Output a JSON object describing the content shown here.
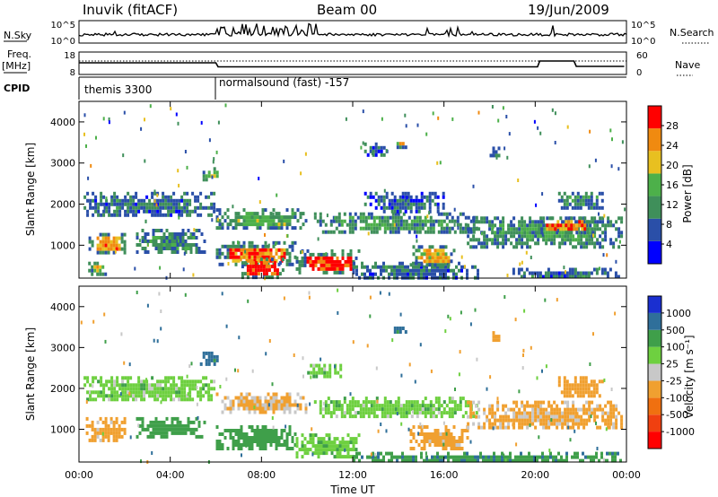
{
  "header": {
    "station": "Inuvik (fitACF)",
    "beam": "Beam 00",
    "date": "19/Jun/2009"
  },
  "top_panels": {
    "nsky_label": "N.Sky",
    "nsky_ticks": [
      "10^5",
      "10^0"
    ],
    "nsearch_ticks": [
      "10^5",
      "10^0"
    ],
    "nsearch_label": "N.Search",
    "freq_label_1": "Freq.",
    "freq_label_2": "[MHz]",
    "freq_ticks": [
      "18",
      "8"
    ],
    "nave_ticks": [
      "60",
      "0"
    ],
    "nave_label": "Nave",
    "cpid_label": "CPID",
    "cpid_1": "themis 3300",
    "cpid_2": "normalsound (fast) -157"
  },
  "colors": {
    "power_scale": [
      "#0000ff",
      "#2a4fa8",
      "#3f8f5a",
      "#4db04a",
      "#e8c020",
      "#f08a10",
      "#ff0000"
    ],
    "velocity_scale": [
      "#1a2fd0",
      "#2f6f9a",
      "#3f9f4a",
      "#6ed040",
      "#c8c8c8",
      "#f0a030",
      "#f07010",
      "#f04010",
      "#ff0000"
    ]
  },
  "chart_data": [
    {
      "type": "heatmap",
      "name": "power",
      "ylabel": "Slant Range [km]",
      "yticks": [
        "1000",
        "2000",
        "3000",
        "4000"
      ],
      "ylim": [
        200,
        4500
      ],
      "xlim": [
        0,
        24
      ],
      "colorbar_label": "Power [dB]",
      "colorbar_ticks": [
        "4",
        "8",
        "12",
        "16",
        "20",
        "24",
        "28"
      ],
      "zlim": [
        0,
        32
      ],
      "regions": [
        {
          "t0": 0.2,
          "t1": 5.9,
          "r0": 1700,
          "r1": 2300,
          "v": 9
        },
        {
          "t0": 0.3,
          "t1": 2.0,
          "r0": 850,
          "r1": 1300,
          "v": 24
        },
        {
          "t0": 2.5,
          "t1": 5.5,
          "r0": 800,
          "r1": 1400,
          "v": 11
        },
        {
          "t0": 0.4,
          "t1": 1.2,
          "r0": 300,
          "r1": 600,
          "v": 20
        },
        {
          "t0": 6.0,
          "t1": 10.0,
          "r0": 1400,
          "r1": 1900,
          "v": 14
        },
        {
          "t0": 6.0,
          "t1": 9.5,
          "r0": 500,
          "r1": 1100,
          "v": 26
        },
        {
          "t0": 7.0,
          "t1": 9.0,
          "r0": 250,
          "r1": 700,
          "v": 29
        },
        {
          "t0": 9.5,
          "t1": 12.3,
          "r0": 300,
          "r1": 900,
          "v": 30
        },
        {
          "t0": 10.3,
          "t1": 17.5,
          "r0": 1300,
          "r1": 1800,
          "v": 12
        },
        {
          "t0": 12.5,
          "t1": 16.0,
          "r0": 1800,
          "r1": 2300,
          "v": 7
        },
        {
          "t0": 12.0,
          "t1": 17.5,
          "r0": 200,
          "r1": 600,
          "v": 9
        },
        {
          "t0": 14.5,
          "t1": 16.5,
          "r0": 500,
          "r1": 1000,
          "v": 22
        },
        {
          "t0": 17.0,
          "t1": 23.8,
          "r0": 1000,
          "r1": 1700,
          "v": 13
        },
        {
          "t0": 20.0,
          "t1": 22.5,
          "r0": 1300,
          "r1": 1700,
          "v": 25
        },
        {
          "t0": 21.0,
          "t1": 23.0,
          "r0": 1900,
          "r1": 2300,
          "v": 11
        },
        {
          "t0": 19.0,
          "t1": 23.8,
          "r0": 200,
          "r1": 450,
          "v": 9
        },
        {
          "t0": 13.8,
          "t1": 14.3,
          "r0": 3400,
          "r1": 3600,
          "v": 22
        },
        {
          "t0": 5.3,
          "t1": 6.2,
          "r0": 2600,
          "r1": 2900,
          "v": 18
        },
        {
          "t0": 18.0,
          "t1": 18.4,
          "r0": 3200,
          "r1": 3400,
          "v": 8
        },
        {
          "t0": 12.5,
          "t1": 13.5,
          "r0": 3200,
          "r1": 3500,
          "v": 8
        }
      ]
    },
    {
      "type": "heatmap",
      "name": "velocity",
      "ylabel": "Slant Range [km]",
      "yticks": [
        "1000",
        "2000",
        "3000",
        "4000"
      ],
      "ylim": [
        200,
        4500
      ],
      "xlim": [
        0,
        24
      ],
      "xlabel": "Time UT",
      "xticks": [
        "00:00",
        "04:00",
        "08:00",
        "12:00",
        "16:00",
        "20:00",
        "00:00"
      ],
      "colorbar_label": "Velocity [m s⁻¹]",
      "colorbar_ticks": [
        "1000",
        "500",
        "100",
        "25",
        "-25",
        "-100",
        "-500",
        "-1000"
      ],
      "regions": [
        {
          "t0": 0.2,
          "t1": 5.9,
          "r0": 1700,
          "r1": 2300,
          "v": 0
        },
        {
          "t0": 0.3,
          "t1": 2.0,
          "r0": 700,
          "r1": 1300,
          "v": -150
        },
        {
          "t0": 2.5,
          "t1": 5.5,
          "r0": 800,
          "r1": 1300,
          "v": 60
        },
        {
          "t0": 6.0,
          "t1": 10.0,
          "r0": 1400,
          "r1": 1900,
          "v": -120
        },
        {
          "t0": 6.0,
          "t1": 9.5,
          "r0": 500,
          "r1": 1100,
          "v": 60
        },
        {
          "t0": 9.5,
          "t1": 12.3,
          "r0": 300,
          "r1": 900,
          "v": 5
        },
        {
          "t0": 10.3,
          "t1": 17.5,
          "r0": 1300,
          "r1": 1800,
          "v": 0
        },
        {
          "t0": 14.5,
          "t1": 17.0,
          "r0": 500,
          "r1": 1100,
          "v": -150
        },
        {
          "t0": 17.0,
          "t1": 23.8,
          "r0": 1000,
          "r1": 1700,
          "v": -130
        },
        {
          "t0": 21.0,
          "t1": 23.0,
          "r0": 1800,
          "r1": 2300,
          "v": -200
        },
        {
          "t0": 12.0,
          "t1": 23.8,
          "r0": 200,
          "r1": 450,
          "v": 80
        },
        {
          "t0": 13.8,
          "t1": 14.3,
          "r0": 3400,
          "r1": 3600,
          "v": 150
        },
        {
          "t0": 5.3,
          "t1": 6.2,
          "r0": 2600,
          "r1": 2900,
          "v": 150
        },
        {
          "t0": 18.0,
          "t1": 18.4,
          "r0": 3200,
          "r1": 3400,
          "v": -200
        },
        {
          "t0": 10.0,
          "t1": 11.5,
          "r0": 2300,
          "r1": 2600,
          "v": 0
        }
      ]
    }
  ]
}
